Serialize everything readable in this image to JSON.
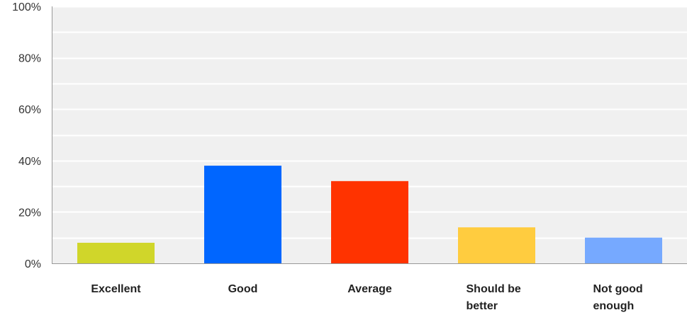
{
  "chart_data": {
    "type": "bar",
    "categories": [
      "Excellent",
      "Good",
      "Average",
      "Should be better",
      "Not good enough"
    ],
    "category_lines": [
      [
        "Excellent"
      ],
      [
        "Good"
      ],
      [
        "Average"
      ],
      [
        "Should be",
        "better"
      ],
      [
        "Not good",
        "enough"
      ]
    ],
    "values": [
      8,
      38,
      32,
      14,
      10
    ],
    "bar_colors": [
      "#d0d62a",
      "#0066ff",
      "#ff3300",
      "#ffcc3f",
      "#76a9ff"
    ],
    "ylim": [
      0,
      100
    ],
    "y_ticks": [
      0,
      20,
      40,
      60,
      80,
      100
    ],
    "y_tick_labels": [
      "0%",
      "20%",
      "40%",
      "60%",
      "80%",
      "100%"
    ],
    "grid": true,
    "background_color": "#f0f0f0",
    "grid_color": "#ffffff",
    "title": "",
    "xlabel": "",
    "ylabel": ""
  }
}
